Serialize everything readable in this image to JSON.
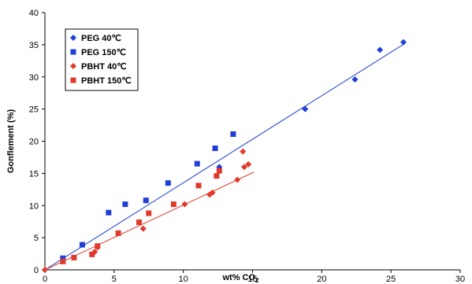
{
  "chart_data": {
    "type": "scatter",
    "title": "",
    "xlabel": "wt% CO2",
    "xlabel_main": "wt% CO",
    "xlabel_sub": "2",
    "ylabel": "Gonflement (%)",
    "xlim": [
      0,
      30
    ],
    "ylim": [
      0,
      40
    ],
    "xticks": [
      0,
      5,
      10,
      15,
      20,
      25,
      30
    ],
    "yticks": [
      0,
      5,
      10,
      15,
      20,
      25,
      30,
      35,
      40
    ],
    "grid": false,
    "legend_position": "top-left",
    "series": [
      {
        "name": "PEG 40℃",
        "marker": "diamond",
        "color": "#1f3fd8",
        "points": [
          [
            0,
            0
          ],
          [
            12.6,
            16.0
          ],
          [
            18.8,
            25.0
          ],
          [
            22.4,
            29.6
          ],
          [
            24.2,
            34.2
          ],
          [
            25.9,
            35.4
          ]
        ]
      },
      {
        "name": "PEG 150℃",
        "marker": "square",
        "color": "#1f3fd8",
        "points": [
          [
            1.3,
            1.8
          ],
          [
            2.7,
            3.9
          ],
          [
            4.6,
            8.9
          ],
          [
            5.8,
            10.2
          ],
          [
            7.3,
            10.8
          ],
          [
            8.9,
            13.5
          ],
          [
            11.0,
            16.5
          ],
          [
            12.3,
            18.9
          ],
          [
            13.6,
            21.1
          ]
        ]
      },
      {
        "name": "PBHT 40℃",
        "marker": "diamond",
        "color": "#e03a2a",
        "points": [
          [
            0,
            0
          ],
          [
            3.6,
            2.8
          ],
          [
            3.8,
            3.5
          ],
          [
            7.1,
            6.4
          ],
          [
            10.1,
            10.2
          ],
          [
            11.9,
            11.7
          ],
          [
            12.1,
            12.0
          ],
          [
            13.9,
            14.0
          ],
          [
            14.4,
            16.0
          ],
          [
            14.7,
            16.4
          ],
          [
            14.3,
            18.4
          ]
        ]
      },
      {
        "name": "PBHT 150℃",
        "marker": "square",
        "color": "#e03a2a",
        "points": [
          [
            1.3,
            1.3
          ],
          [
            2.1,
            1.9
          ],
          [
            3.4,
            2.4
          ],
          [
            3.8,
            3.7
          ],
          [
            5.3,
            5.7
          ],
          [
            6.8,
            7.4
          ],
          [
            7.5,
            8.8
          ],
          [
            9.3,
            10.2
          ],
          [
            11.1,
            13.1
          ],
          [
            12.4,
            14.6
          ],
          [
            12.6,
            15.4
          ]
        ]
      }
    ],
    "trendlines": [
      {
        "color": "#1f3fd8",
        "from": [
          0,
          0
        ],
        "to": [
          26,
          35.2
        ]
      },
      {
        "color": "#e03a2a",
        "from": [
          0,
          0
        ],
        "to": [
          15.1,
          15.2
        ]
      }
    ]
  }
}
